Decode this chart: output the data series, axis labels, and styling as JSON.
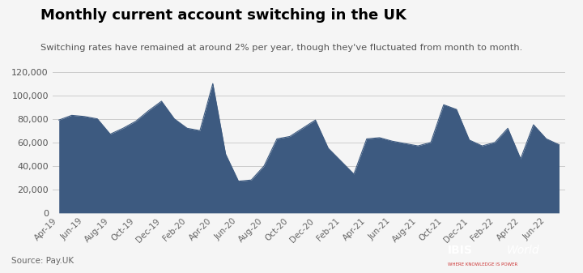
{
  "title": "Monthly current account switching in the UK",
  "subtitle": "Switching rates have remained at around 2% per year, though they've fluctuated from month to month.",
  "source": "Source: Pay.UK",
  "fill_color": "#3d5a80",
  "background_color": "#f5f5f5",
  "plot_bg_color": "#f5f5f5",
  "ylim": [
    0,
    130000
  ],
  "yticks": [
    0,
    20000,
    40000,
    60000,
    80000,
    100000,
    120000
  ],
  "x_labels": [
    "Apr-19",
    "Jun-19",
    "Aug-19",
    "Oct-19",
    "Dec-19",
    "Feb-20",
    "Apr-20",
    "Jun-20",
    "Aug-20",
    "Oct-20",
    "Dec-20",
    "Feb-21",
    "Apr-21",
    "Jun-21",
    "Aug-21",
    "Oct-21",
    "Dec-21",
    "Feb-22",
    "Apr-22",
    "Jun-22"
  ],
  "monthly_values": [
    79000,
    83000,
    82000,
    80000,
    67000,
    72000,
    78000,
    87000,
    95000,
    80000,
    72000,
    70000,
    110000,
    50000,
    27000,
    28000,
    40000,
    63000,
    65000,
    72000,
    79000,
    55000,
    44000,
    33000,
    63000,
    64000,
    61000,
    59000,
    57000,
    60000,
    92000,
    88000,
    62000,
    57000,
    60000,
    72000,
    46000,
    75000,
    63000,
    58000
  ],
  "x_tick_positions": [
    0,
    2,
    4,
    6,
    8,
    10,
    12,
    14,
    16,
    18,
    20,
    22,
    24,
    26,
    28,
    30,
    32,
    34,
    36,
    38
  ],
  "logo_ibis_color": "#ffffff",
  "logo_world_color": "#ffffff",
  "logo_tagline_color": "#cc3333",
  "logo_bg_color": "#000000"
}
